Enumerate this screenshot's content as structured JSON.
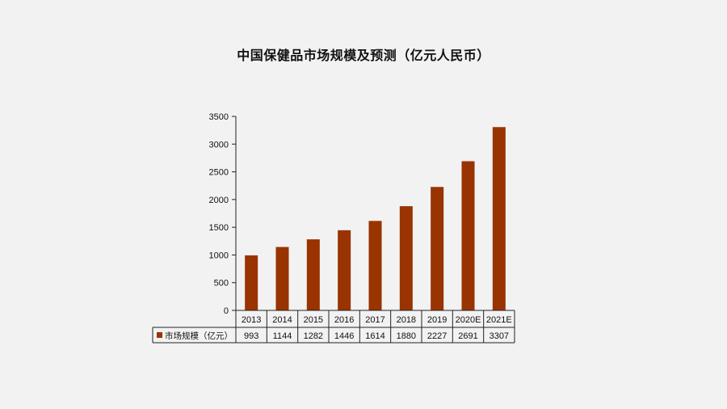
{
  "chart_data": {
    "type": "bar",
    "title": "中国保健品市场规模及预测（亿元人民币）",
    "categories": [
      "2013",
      "2014",
      "2015",
      "2016",
      "2017",
      "2018",
      "2019",
      "2020E",
      "2021E"
    ],
    "series": [
      {
        "name": "市场规模（亿元）",
        "values": [
          993,
          1144,
          1282,
          1446,
          1614,
          1880,
          2227,
          2691,
          3307
        ]
      }
    ],
    "ylim": [
      0,
      3500
    ],
    "yticks": [
      0,
      500,
      1000,
      1500,
      2000,
      2500,
      3000,
      3500
    ],
    "bar_color": "#993300",
    "data_table": true,
    "grid": false,
    "legend": "data-table-row"
  }
}
